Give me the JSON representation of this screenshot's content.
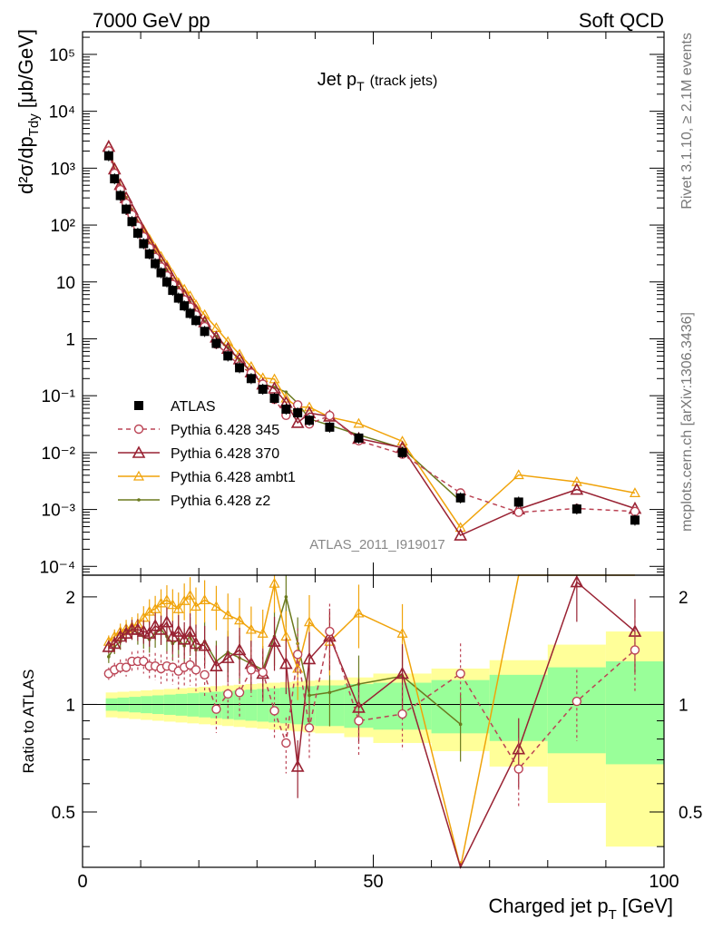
{
  "header": {
    "left": "7000 GeV pp",
    "right": "Soft QCD"
  },
  "side": {
    "top": "Rivet 3.1.10, ≥ 2.1M events",
    "bottom": "mcplots.cern.ch [arXiv:1306.3436]"
  },
  "chart_data": {
    "type": "scatter",
    "title_main": "Jet p",
    "title_sub": "T",
    "title_extra": "(track jets)",
    "analysis_id": "ATLAS_2011_I919017",
    "ylabel_main": "d²σ/dp",
    "ylabel_sub": "Tdy",
    "ylabel_unit": "[μb/GeV]",
    "xlabel_main": "Charged jet p",
    "xlabel_sub": "T",
    "xlabel_unit": "[GeV]",
    "ratio_ylabel": "Ratio to ATLAS",
    "xlim": [
      0,
      100
    ],
    "ylim_log": [
      7e-05,
      250000
    ],
    "ratio_ylim": [
      0.35,
      2.3
    ],
    "y_log_scale": true,
    "x_ticks": [
      "0",
      "50",
      "100"
    ],
    "y_ticks": [
      "10⁵",
      "10⁴",
      "10³",
      "10²",
      "10",
      "1",
      "10⁻¹",
      "10⁻²",
      "10⁻³",
      "10⁻⁴"
    ],
    "ratio_ticks": [
      "2",
      "1",
      "0.5"
    ],
    "legend_position": "lower-left",
    "x": [
      4.5,
      5.5,
      6.5,
      7.5,
      8.5,
      9.5,
      10.5,
      11.5,
      12.5,
      13.5,
      14.5,
      15.5,
      16.5,
      17.5,
      18.5,
      19.5,
      21,
      23,
      25,
      27,
      29,
      31,
      33,
      35,
      37,
      39,
      42.5,
      47.5,
      55,
      65,
      75,
      85,
      95
    ],
    "series": [
      {
        "name": "ATLAS",
        "color": "#000000",
        "marker": "square",
        "values": [
          1650,
          650,
          330,
          190,
          115,
          72,
          47,
          31,
          21,
          14.5,
          10,
          7.1,
          5.2,
          3.8,
          2.8,
          2.1,
          1.35,
          0.83,
          0.5,
          0.31,
          0.2,
          0.13,
          0.09,
          0.058,
          0.05,
          0.037,
          0.028,
          0.018,
          0.01,
          0.0016,
          0.00135,
          0.00102,
          0.00065
        ]
      },
      {
        "name": "Pythia 6.428 345",
        "color": "#bb4455",
        "marker": "circle",
        "ratios": [
          1.22,
          1.25,
          1.27,
          1.27,
          1.32,
          1.32,
          1.32,
          1.28,
          1.28,
          1.26,
          1.28,
          1.27,
          1.24,
          1.27,
          1.29,
          1.25,
          1.21,
          0.97,
          1.07,
          1.08,
          1.25,
          1.23,
          0.96,
          0.78,
          1.38,
          0.86,
          1.6,
          0.9,
          0.94,
          1.22,
          0.66,
          1.02,
          1.42
        ]
      },
      {
        "name": "Pythia 6.428 370",
        "color": "#992233",
        "marker": "triangle",
        "ratios": [
          1.45,
          1.48,
          1.55,
          1.58,
          1.62,
          1.62,
          1.6,
          1.58,
          1.66,
          1.62,
          1.7,
          1.55,
          1.6,
          1.52,
          1.6,
          1.48,
          1.46,
          1.28,
          1.35,
          1.42,
          1.3,
          1.22,
          1.5,
          1.3,
          0.67,
          1.34,
          1.55,
          0.98,
          1.22,
          0.22,
          0.75,
          2.2,
          1.6
        ]
      },
      {
        "name": "Pythia 6.428 ambt1",
        "color": "#f0a30a",
        "marker": "triangle-open",
        "ratios": [
          1.5,
          1.55,
          1.6,
          1.63,
          1.65,
          1.68,
          1.75,
          1.82,
          1.85,
          1.92,
          1.96,
          1.9,
          1.85,
          1.95,
          2.02,
          1.88,
          1.96,
          1.88,
          1.78,
          1.72,
          1.62,
          1.58,
          2.18,
          1.55,
          1.26,
          1.7,
          1.5,
          1.8,
          1.58,
          0.3,
          3.0,
          3.0,
          3.0
        ]
      },
      {
        "name": "Pythia 6.428 z2",
        "color": "#6b7a1e",
        "marker": "dot",
        "ratios": [
          1.36,
          1.45,
          1.5,
          1.6,
          1.62,
          1.58,
          1.55,
          1.52,
          1.58,
          1.62,
          1.55,
          1.48,
          1.52,
          1.46,
          1.56,
          1.42,
          1.5,
          1.32,
          1.4,
          1.35,
          1.3,
          1.25,
          1.55,
          2.0,
          1.48,
          1.06,
          1.08,
          1.14,
          1.2,
          0.88
        ]
      }
    ],
    "band": {
      "edges": [
        4,
        6,
        8,
        10,
        12,
        14,
        16,
        18,
        20,
        22,
        24,
        26,
        28,
        30,
        32,
        34,
        36,
        38,
        40,
        45,
        50,
        60,
        70,
        80,
        90,
        100
      ],
      "inner": [
        0.04,
        0.045,
        0.05,
        0.055,
        0.06,
        0.065,
        0.07,
        0.075,
        0.08,
        0.085,
        0.09,
        0.095,
        0.1,
        0.105,
        0.11,
        0.115,
        0.12,
        0.125,
        0.13,
        0.14,
        0.15,
        0.17,
        0.21,
        0.27,
        0.32
      ],
      "outer": [
        0.08,
        0.085,
        0.09,
        0.095,
        0.1,
        0.105,
        0.11,
        0.115,
        0.12,
        0.125,
        0.13,
        0.135,
        0.14,
        0.145,
        0.15,
        0.155,
        0.16,
        0.165,
        0.17,
        0.19,
        0.22,
        0.26,
        0.33,
        0.47,
        0.6
      ]
    }
  }
}
